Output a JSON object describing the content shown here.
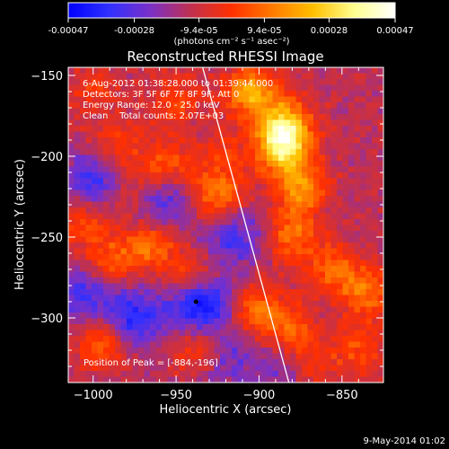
{
  "colorbar": {
    "tick_labels": [
      "-0.00047",
      "-0.00028",
      "-9.4e-05",
      "9.4e-05",
      "0.00028",
      "0.00047"
    ],
    "tick_values": [
      -0.00047,
      -0.00028,
      -9.4e-05,
      9.4e-05,
      0.00028,
      0.00047
    ],
    "range": [
      -0.00047,
      0.00047
    ],
    "unit_label": "(photons cm⁻² s⁻¹ asec⁻²)",
    "stops": [
      "#0000ff",
      "#3030ff",
      "#7a30c8",
      "#c03050",
      "#ff3000",
      "#ff7a00",
      "#ffc000",
      "#ffff90",
      "#ffffff"
    ]
  },
  "chart_data": {
    "type": "heatmap",
    "title": "Reconstructed RHESSI Image",
    "xlabel": "Heliocentric X (arcsec)",
    "ylabel": "Heliocentric Y (arcsec)",
    "xlim": [
      -1015,
      -825
    ],
    "ylim": [
      -340,
      -145
    ],
    "x_ticks": [
      -1000,
      -950,
      -900,
      -850
    ],
    "x_tick_labels": [
      "−1000",
      "−950",
      "−900",
      "−850"
    ],
    "y_ticks": [
      -150,
      -200,
      -250,
      -300
    ],
    "y_tick_labels": [
      "−150",
      "−200",
      "−250",
      "−300"
    ],
    "annotations": [
      "6-Aug-2012 01:38:28.000 to 01:39:44.000",
      "Detectors: 3F 5F 6F 7F 8F 9F, Att 0",
      "Energy Range: 12.0 - 25.0 keV",
      "Clean    Total counts: 2.07E+03"
    ],
    "peak_label": "Position of Peak = [-884,-196]",
    "peak_position": [
      -884,
      -196
    ],
    "marker_position": [
      -938,
      -290
    ],
    "limb_line": [
      [
        -934,
        -145
      ],
      [
        -882,
        -340
      ]
    ],
    "hotspots": [
      {
        "x": -885,
        "y": -195,
        "strength": 1.0
      },
      {
        "x": -885,
        "y": -180,
        "strength": 0.85
      },
      {
        "x": -905,
        "y": -160,
        "strength": 0.8
      },
      {
        "x": -875,
        "y": -220,
        "strength": 0.7
      },
      {
        "x": -925,
        "y": -225,
        "strength": 0.6
      },
      {
        "x": -955,
        "y": -205,
        "strength": 0.45
      },
      {
        "x": -985,
        "y": -195,
        "strength": 0.4
      },
      {
        "x": -965,
        "y": -255,
        "strength": 0.6
      },
      {
        "x": -990,
        "y": -265,
        "strength": 0.45
      },
      {
        "x": -940,
        "y": -275,
        "strength": 0.5
      },
      {
        "x": -1005,
        "y": -240,
        "strength": 0.4
      },
      {
        "x": -995,
        "y": -315,
        "strength": 0.55
      },
      {
        "x": -880,
        "y": -250,
        "strength": 0.55
      },
      {
        "x": -855,
        "y": -270,
        "strength": 0.5
      },
      {
        "x": -835,
        "y": -285,
        "strength": 0.55
      },
      {
        "x": -900,
        "y": -295,
        "strength": 0.6
      },
      {
        "x": -880,
        "y": -310,
        "strength": 0.5
      },
      {
        "x": -935,
        "y": -320,
        "strength": 0.45
      },
      {
        "x": -840,
        "y": -320,
        "strength": 0.4
      },
      {
        "x": -870,
        "y": -330,
        "strength": 0.5
      },
      {
        "x": -975,
        "y": -225,
        "strength": 0.35
      },
      {
        "x": -1000,
        "y": -160,
        "strength": 0.3
      },
      {
        "x": -950,
        "y": -165,
        "strength": 0.35
      },
      {
        "x": -920,
        "y": -200,
        "strength": 0.3
      }
    ],
    "coldspots": [
      {
        "x": -935,
        "y": -290,
        "strength": 0.9
      },
      {
        "x": -975,
        "y": -300,
        "strength": 0.65
      },
      {
        "x": -960,
        "y": -230,
        "strength": 0.55
      },
      {
        "x": -1000,
        "y": -215,
        "strength": 0.55
      },
      {
        "x": -915,
        "y": -250,
        "strength": 0.5
      },
      {
        "x": -880,
        "y": -330,
        "strength": 0.45
      },
      {
        "x": -1005,
        "y": -285,
        "strength": 0.5
      },
      {
        "x": -920,
        "y": -325,
        "strength": 0.4
      }
    ]
  },
  "footer": {
    "timestamp": "9-May-2014 01:02"
  }
}
